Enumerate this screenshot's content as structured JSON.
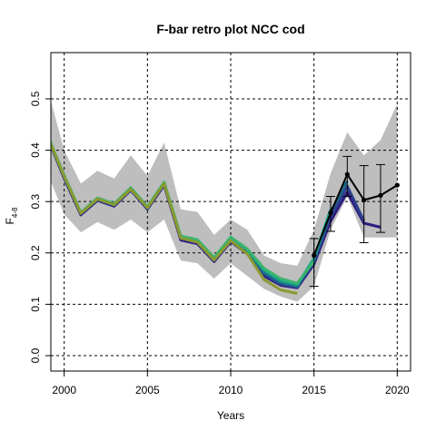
{
  "chart_data": {
    "type": "line",
    "title": "F-bar retro plot NCC cod",
    "xlabel": "Years",
    "ylabel": "F",
    "ylabel_subscript": "4-8",
    "xlim": [
      1999.2,
      2020.8
    ],
    "ylim": [
      -0.03,
      0.59
    ],
    "x_ticks": [
      2000,
      2005,
      2010,
      2015,
      2020
    ],
    "y_ticks": [
      0.0,
      0.1,
      0.2,
      0.3,
      0.4,
      0.5
    ],
    "x_tick_labels": [
      "2000",
      "2005",
      "2010",
      "2015",
      "2020"
    ],
    "y_tick_labels": [
      "0.0",
      "0.1",
      "0.2",
      "0.3",
      "0.4",
      "0.5"
    ],
    "grid": true,
    "confidence_band": {
      "x": [
        1999,
        2000,
        2001,
        2002,
        2003,
        2004,
        2005,
        2006,
        2007,
        2008,
        2009,
        2010,
        2011,
        2012,
        2013,
        2014,
        2015,
        2016,
        2017,
        2018,
        2019,
        2020
      ],
      "lower": [
        0.355,
        0.275,
        0.24,
        0.26,
        0.245,
        0.265,
        0.24,
        0.265,
        0.185,
        0.18,
        0.15,
        0.18,
        0.155,
        0.13,
        0.115,
        0.105,
        0.135,
        0.245,
        0.31,
        0.23,
        0.23,
        0.23
      ],
      "upper": [
        0.52,
        0.4,
        0.335,
        0.36,
        0.345,
        0.39,
        0.35,
        0.415,
        0.285,
        0.28,
        0.235,
        0.265,
        0.245,
        0.195,
        0.18,
        0.175,
        0.245,
        0.355,
        0.435,
        0.39,
        0.42,
        0.49
      ]
    },
    "series": [
      {
        "color": "#2e1a80",
        "x": [
          1999,
          2000,
          2001,
          2002,
          2003,
          2004,
          2005,
          2006,
          2007,
          2008,
          2009,
          2010,
          2011,
          2012,
          2013,
          2014,
          2015,
          2016,
          2017,
          2018,
          2019
        ],
        "values": [
          0.425,
          0.345,
          0.274,
          0.302,
          0.291,
          0.322,
          0.285,
          0.332,
          0.225,
          0.218,
          0.183,
          0.222,
          0.198,
          0.155,
          0.137,
          0.132,
          0.178,
          0.262,
          0.318,
          0.258,
          0.25
        ]
      },
      {
        "color": "#2c3f8c",
        "x": [
          1999,
          2000,
          2001,
          2002,
          2003,
          2004,
          2005,
          2006,
          2007,
          2008,
          2009,
          2010,
          2011,
          2012,
          2013,
          2014,
          2015,
          2016,
          2017,
          2018
        ],
        "values": [
          0.426,
          0.347,
          0.276,
          0.303,
          0.292,
          0.323,
          0.286,
          0.334,
          0.228,
          0.22,
          0.185,
          0.224,
          0.2,
          0.158,
          0.139,
          0.133,
          0.182,
          0.27,
          0.33,
          0.262
        ]
      },
      {
        "color": "#1b6b8a",
        "x": [
          1999,
          2000,
          2001,
          2002,
          2003,
          2004,
          2005,
          2006,
          2007,
          2008,
          2009,
          2010,
          2011,
          2012,
          2013,
          2014,
          2015,
          2016,
          2017
        ],
        "values": [
          0.427,
          0.348,
          0.277,
          0.305,
          0.294,
          0.325,
          0.288,
          0.336,
          0.23,
          0.222,
          0.188,
          0.227,
          0.203,
          0.162,
          0.142,
          0.135,
          0.186,
          0.28,
          0.34
        ]
      },
      {
        "color": "#18a28a",
        "x": [
          1999,
          2000,
          2001,
          2002,
          2003,
          2004,
          2005,
          2006,
          2007,
          2008,
          2009,
          2010,
          2011,
          2012,
          2013,
          2014,
          2015,
          2016
        ],
        "values": [
          0.428,
          0.35,
          0.278,
          0.306,
          0.295,
          0.326,
          0.289,
          0.337,
          0.232,
          0.224,
          0.19,
          0.23,
          0.206,
          0.166,
          0.146,
          0.138,
          0.19,
          0.285
        ]
      },
      {
        "color": "#3cb46e",
        "x": [
          1999,
          2000,
          2001,
          2002,
          2003,
          2004,
          2005,
          2006,
          2007,
          2008,
          2009,
          2010,
          2011,
          2012,
          2013,
          2014,
          2015
        ],
        "values": [
          0.429,
          0.351,
          0.279,
          0.307,
          0.296,
          0.327,
          0.29,
          0.338,
          0.233,
          0.226,
          0.191,
          0.231,
          0.208,
          0.17,
          0.15,
          0.141,
          0.184
        ]
      },
      {
        "color": "#8c9a30",
        "x": [
          1999,
          2000,
          2001,
          2002,
          2003,
          2004,
          2005,
          2006,
          2007,
          2008,
          2009,
          2010,
          2011,
          2012,
          2013,
          2014
        ],
        "values": [
          0.427,
          0.349,
          0.277,
          0.305,
          0.294,
          0.324,
          0.288,
          0.335,
          0.229,
          0.221,
          0.186,
          0.224,
          0.198,
          0.148,
          0.128,
          0.121
        ]
      },
      {
        "color": "#000000",
        "marker": true,
        "x": [
          2015,
          2016,
          2017,
          2018,
          2019,
          2020
        ],
        "values": [
          0.195,
          0.278,
          0.353,
          0.303,
          0.312,
          0.332
        ]
      }
    ],
    "error_bars": [
      {
        "x": 2015,
        "low": 0.135,
        "high": 0.228
      },
      {
        "x": 2016,
        "low": 0.242,
        "high": 0.31
      },
      {
        "x": 2017,
        "low": 0.31,
        "high": 0.388
      },
      {
        "x": 2018,
        "low": 0.22,
        "high": 0.37
      },
      {
        "x": 2019,
        "low": 0.24,
        "high": 0.372
      }
    ],
    "colors": {
      "band": "#bebebe",
      "grid": "#000000",
      "axis": "#000000"
    }
  }
}
